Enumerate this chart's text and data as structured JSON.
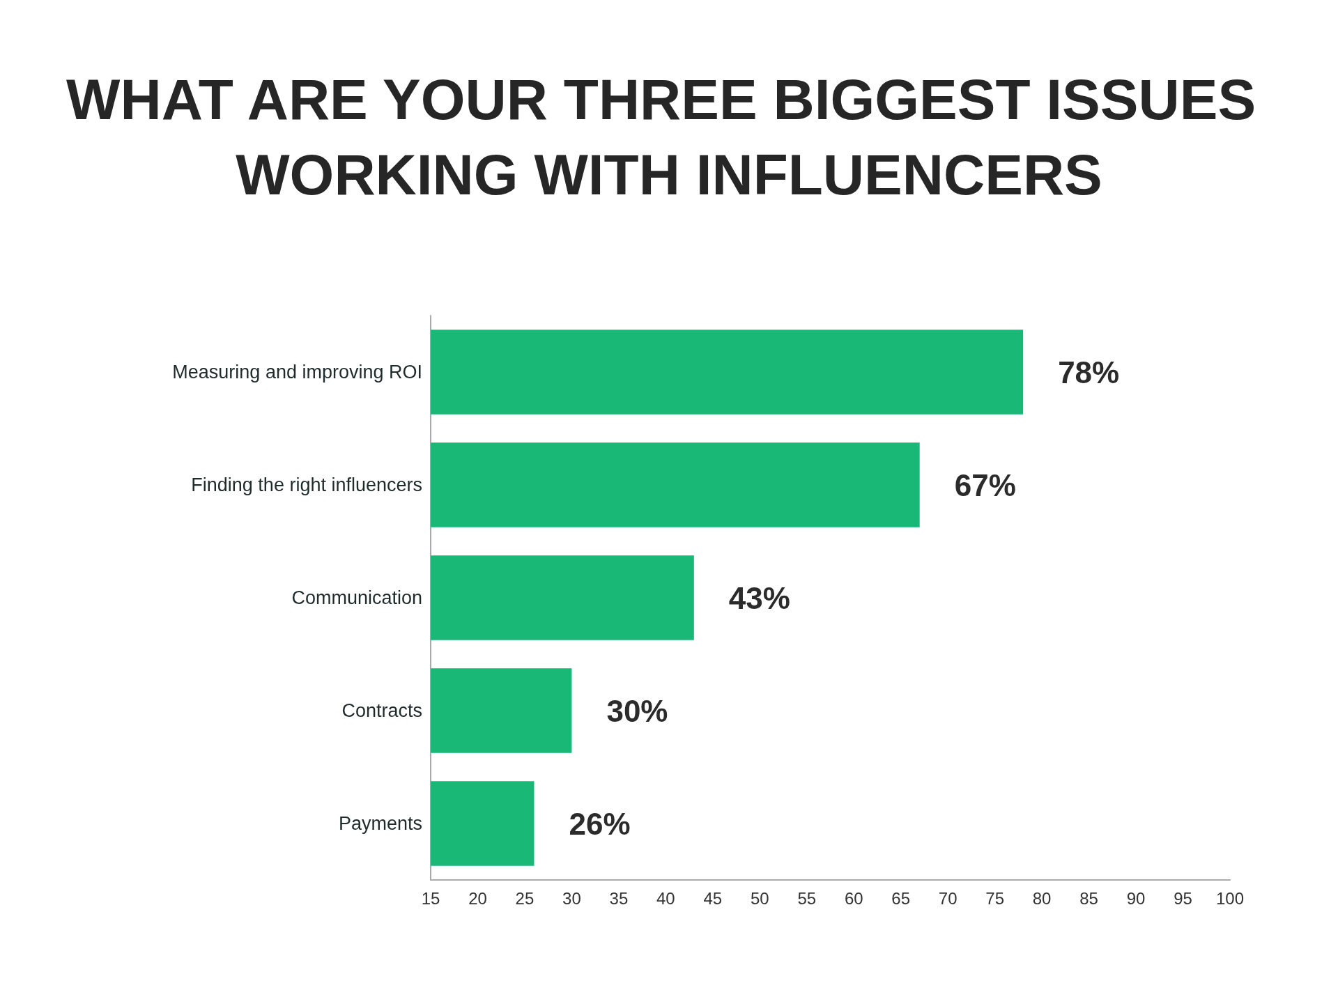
{
  "chart_data": {
    "type": "bar",
    "orientation": "horizontal",
    "title": "WHAT ARE YOUR THREE BIGGEST ISSUES WORKING WITH INFLUENCERS",
    "categories": [
      "Measuring and improving ROI",
      "Finding the right influencers",
      "Communication",
      "Contracts",
      "Payments"
    ],
    "values": [
      78,
      67,
      43,
      30,
      26
    ],
    "value_labels": [
      "78%",
      "67%",
      "43%",
      "30%",
      "26%"
    ],
    "color": "#1ab877",
    "xlim": [
      15,
      100
    ],
    "xticks": [
      15,
      20,
      25,
      30,
      35,
      40,
      45,
      50,
      55,
      60,
      65,
      70,
      75,
      80,
      85,
      90,
      95,
      100
    ],
    "grid": false
  }
}
